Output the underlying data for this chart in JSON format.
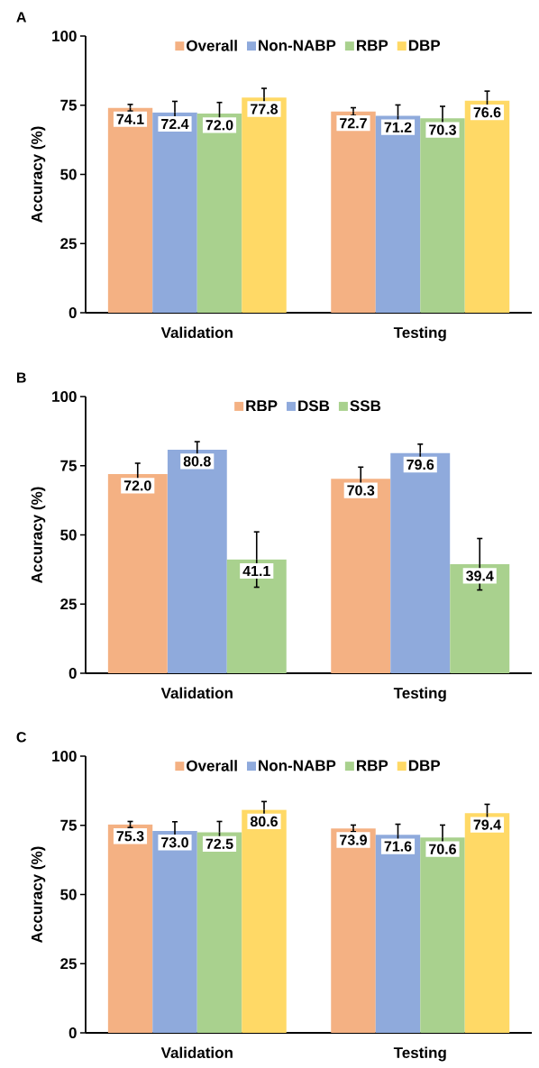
{
  "chart_data": [
    {
      "type": "bar",
      "title": "A",
      "ylabel": "Accuracy (%)",
      "categories": [
        "Validation",
        "Testing"
      ],
      "ylim": [
        0,
        100
      ],
      "yticks": [
        0,
        25,
        50,
        75,
        100
      ],
      "legend": "top",
      "series": [
        {
          "name": "Overall",
          "color": "#f4b183",
          "values": [
            74.1,
            72.7
          ],
          "value_labels": [
            "74.1",
            "72.7"
          ],
          "errors": [
            1.2,
            1.4
          ]
        },
        {
          "name": "Non-NABP",
          "color": "#8faadc",
          "values": [
            72.4,
            71.2
          ],
          "value_labels": [
            "72.4",
            "71.2"
          ],
          "errors": [
            4.0,
            3.9
          ]
        },
        {
          "name": "RBP",
          "color": "#a9d18e",
          "values": [
            72.0,
            70.3
          ],
          "value_labels": [
            "72.0",
            "70.3"
          ],
          "errors": [
            4.0,
            4.3
          ]
        },
        {
          "name": "DBP",
          "color": "#ffd966",
          "values": [
            77.8,
            76.6
          ],
          "value_labels": [
            "77.8",
            "76.6"
          ],
          "errors": [
            3.3,
            3.5
          ]
        }
      ]
    },
    {
      "type": "bar",
      "title": "B",
      "ylabel": "Accuracy (%)",
      "categories": [
        "Validation",
        "Testing"
      ],
      "ylim": [
        0,
        100
      ],
      "yticks": [
        0,
        25,
        50,
        75,
        100
      ],
      "legend": "top",
      "series": [
        {
          "name": "RBP",
          "color": "#f4b183",
          "values": [
            72.0,
            70.3
          ],
          "value_labels": [
            "72.0",
            "70.3"
          ],
          "errors": [
            3.9,
            4.2
          ]
        },
        {
          "name": "DSB",
          "color": "#8faadc",
          "values": [
            80.8,
            79.6
          ],
          "value_labels": [
            "80.8",
            "79.6"
          ],
          "errors": [
            2.9,
            3.2
          ]
        },
        {
          "name": "SSB",
          "color": "#a9d18e",
          "values": [
            41.1,
            39.4
          ],
          "value_labels": [
            "41.1",
            "39.4"
          ],
          "errors": [
            10.0,
            9.3
          ]
        }
      ]
    },
    {
      "type": "bar",
      "title": "C",
      "ylabel": "Accuracy (%)",
      "categories": [
        "Validation",
        "Testing"
      ],
      "ylim": [
        0,
        100
      ],
      "yticks": [
        0,
        25,
        50,
        75,
        100
      ],
      "legend": "top",
      "series": [
        {
          "name": "Overall",
          "color": "#f4b183",
          "values": [
            75.3,
            73.9
          ],
          "value_labels": [
            "75.3",
            "73.9"
          ],
          "errors": [
            1.1,
            1.2
          ]
        },
        {
          "name": "Non-NABP",
          "color": "#8faadc",
          "values": [
            73.0,
            71.6
          ],
          "value_labels": [
            "73.0",
            "71.6"
          ],
          "errors": [
            3.3,
            3.8
          ]
        },
        {
          "name": "RBP",
          "color": "#a9d18e",
          "values": [
            72.5,
            70.6
          ],
          "value_labels": [
            "72.5",
            "70.6"
          ],
          "errors": [
            3.9,
            4.5
          ]
        },
        {
          "name": "DBP",
          "color": "#ffd966",
          "values": [
            80.6,
            79.4
          ],
          "value_labels": [
            "80.6",
            "79.4"
          ],
          "errors": [
            3.0,
            3.2
          ]
        }
      ]
    }
  ]
}
